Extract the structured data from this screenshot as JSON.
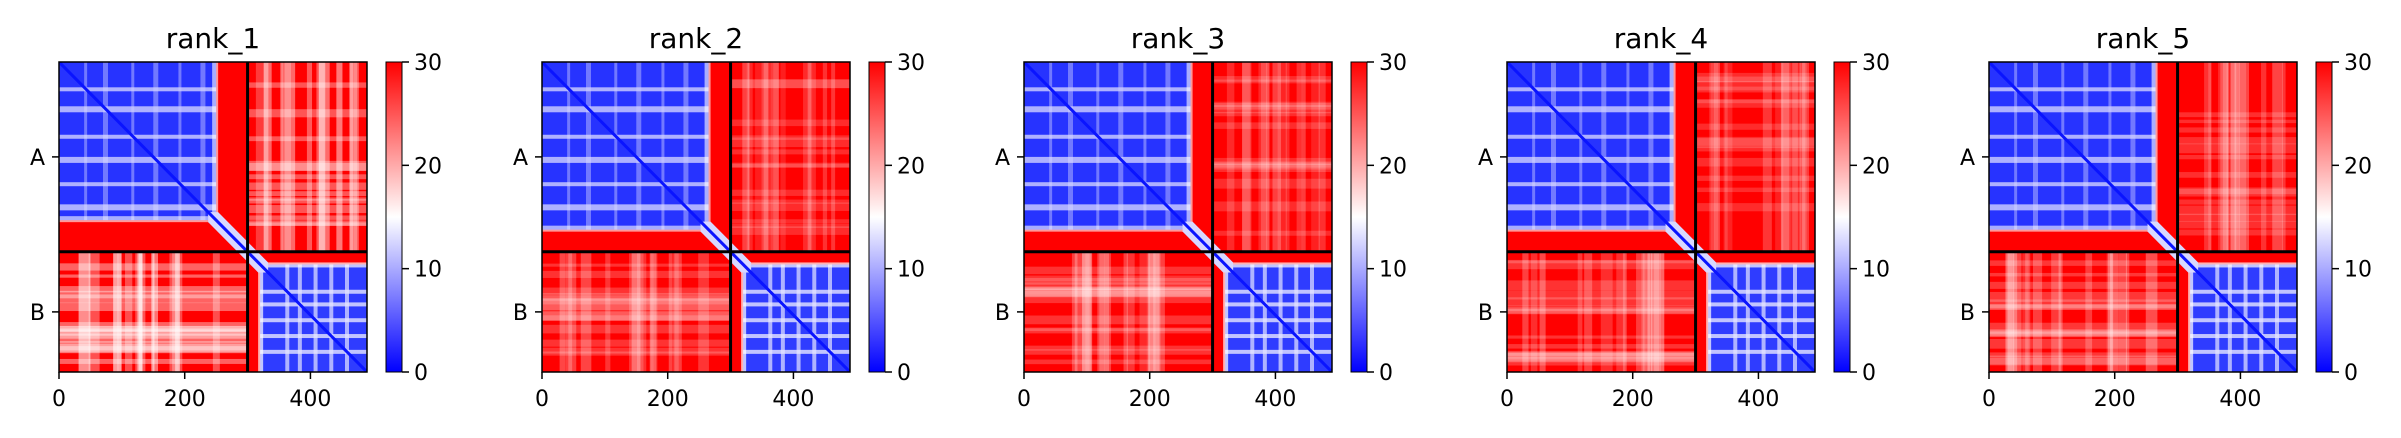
{
  "chart_data": [
    {
      "type": "heatmap",
      "title": "rank_1",
      "x_ticks": [
        0,
        200,
        400
      ],
      "x_range": [
        0,
        490
      ],
      "y_tick_labels": [
        "A",
        "B"
      ],
      "chain_boundary": 300,
      "total_length": 490,
      "colorbar": {
        "ticks": [
          0,
          10,
          20,
          30
        ],
        "range": [
          0,
          30
        ]
      }
    },
    {
      "type": "heatmap",
      "title": "rank_2",
      "x_ticks": [
        0,
        200,
        400
      ],
      "x_range": [
        0,
        490
      ],
      "y_tick_labels": [
        "A",
        "B"
      ],
      "chain_boundary": 300,
      "total_length": 490,
      "colorbar": {
        "ticks": [
          0,
          10,
          20,
          30
        ],
        "range": [
          0,
          30
        ]
      }
    },
    {
      "type": "heatmap",
      "title": "rank_3",
      "x_ticks": [
        0,
        200,
        400
      ],
      "x_range": [
        0,
        490
      ],
      "y_tick_labels": [
        "A",
        "B"
      ],
      "chain_boundary": 300,
      "total_length": 490,
      "colorbar": {
        "ticks": [
          0,
          10,
          20,
          30
        ],
        "range": [
          0,
          30
        ]
      }
    },
    {
      "type": "heatmap",
      "title": "rank_4",
      "x_ticks": [
        0,
        200,
        400
      ],
      "x_range": [
        0,
        490
      ],
      "y_tick_labels": [
        "A",
        "B"
      ],
      "chain_boundary": 300,
      "total_length": 490,
      "colorbar": {
        "ticks": [
          0,
          10,
          20,
          30
        ],
        "range": [
          0,
          30
        ]
      }
    },
    {
      "type": "heatmap",
      "title": "rank_5",
      "x_ticks": [
        0,
        200,
        400
      ],
      "x_range": [
        0,
        490
      ],
      "y_tick_labels": [
        "A",
        "B"
      ],
      "chain_boundary": 300,
      "total_length": 490,
      "colorbar": {
        "ticks": [
          0,
          10,
          20,
          30
        ],
        "range": [
          0,
          30
        ]
      }
    }
  ],
  "colors": {
    "low": "#0000ff",
    "mid": "#ffffff",
    "high": "#ff0000",
    "chain_line": "#000000"
  }
}
